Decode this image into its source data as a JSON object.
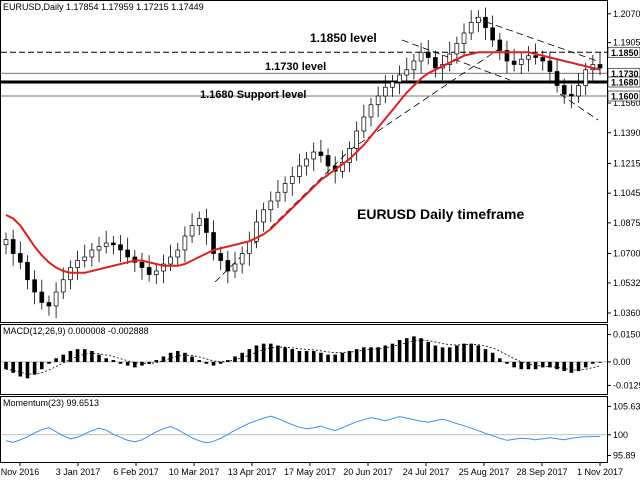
{
  "chart_data": {
    "type": "candlestick",
    "main_title": "EURUSD,Daily  1.17854  1.17959  1.17215  1.17449",
    "annotation_title": "EURUSD Daily timeframe",
    "price_axis": {
      "ticks": [
        "1.2070",
        "1.1905",
        "1.1730",
        "1.1560",
        "1.1390",
        "1.1215",
        "1.1045",
        "1.0875",
        "1.0700",
        "1.0532",
        "1.0360"
      ],
      "range": [
        1.032,
        1.212
      ]
    },
    "levels": [
      {
        "value": 1.185,
        "label": "1.1850 level",
        "tag": "1.1850",
        "style": "dashed"
      },
      {
        "value": 1.173,
        "label": "1.1730 level",
        "tag": "1.1730",
        "style": "thin"
      },
      {
        "value": 1.168,
        "label": "1.1680 Support level",
        "tag": "1.1680",
        "style": "thick"
      },
      {
        "value": 1.16,
        "label": "",
        "tag": "1.1600",
        "style": "thin"
      }
    ],
    "ma_color": "#e0201c",
    "dates": [
      "Nov 2016",
      "3 Jan 2017",
      "6 Feb 2017",
      "10 Mar 2017",
      "13 Apr 2017",
      "17 May 2017",
      "20 Jun 2017",
      "24 Jul 2017",
      "25 Aug 2017",
      "28 Sep 2017",
      "1 Nov 2017"
    ],
    "close_path": [
      1.078,
      1.07,
      1.065,
      1.055,
      1.048,
      1.042,
      1.04,
      1.048,
      1.055,
      1.062,
      1.066,
      1.068,
      1.072,
      1.074,
      1.076,
      1.075,
      1.072,
      1.068,
      1.065,
      1.062,
      1.058,
      1.06,
      1.064,
      1.068,
      1.072,
      1.08,
      1.086,
      1.09,
      1.082,
      1.07,
      1.066,
      1.06,
      1.064,
      1.07,
      1.077,
      1.088,
      1.095,
      1.1,
      1.105,
      1.11,
      1.114,
      1.12,
      1.124,
      1.128,
      1.126,
      1.12,
      1.117,
      1.122,
      1.13,
      1.14,
      1.148,
      1.155,
      1.16,
      1.165,
      1.168,
      1.172,
      1.175,
      1.18,
      1.185,
      1.182,
      1.176,
      1.178,
      1.184,
      1.19,
      1.196,
      1.202,
      1.205,
      1.199,
      1.192,
      1.186,
      1.18,
      1.178,
      1.181,
      1.183,
      1.182,
      1.18,
      1.174,
      1.166,
      1.161,
      1.16,
      1.166,
      1.175,
      1.178,
      1.176
    ],
    "ma_path": [
      1.092,
      1.09,
      1.086,
      1.08,
      1.074,
      1.069,
      1.065,
      1.062,
      1.06,
      1.059,
      1.059,
      1.059,
      1.06,
      1.061,
      1.062,
      1.063,
      1.064,
      1.065,
      1.066,
      1.066,
      1.065,
      1.064,
      1.063,
      1.063,
      1.063,
      1.064,
      1.066,
      1.068,
      1.07,
      1.072,
      1.073,
      1.074,
      1.075,
      1.076,
      1.077,
      1.079,
      1.081,
      1.084,
      1.088,
      1.092,
      1.096,
      1.1,
      1.104,
      1.108,
      1.112,
      1.115,
      1.118,
      1.121,
      1.124,
      1.128,
      1.132,
      1.137,
      1.142,
      1.147,
      1.152,
      1.157,
      1.162,
      1.166,
      1.17,
      1.173,
      1.175,
      1.177,
      1.179,
      1.181,
      1.183,
      1.184,
      1.185,
      1.185,
      1.185,
      1.185,
      1.185,
      1.185,
      1.185,
      1.185,
      1.184,
      1.183,
      1.182,
      1.181,
      1.18,
      1.179,
      1.178,
      1.177,
      1.176,
      1.175
    ],
    "macd": {
      "label": "MACD(12,26,9) 0.000008 -0.002888",
      "ticks": [
        "0.0150",
        "0.00",
        "-0.0129"
      ],
      "range": [
        -0.0165,
        0.0175
      ],
      "hist": [
        -0.004,
        -0.006,
        -0.008,
        -0.009,
        -0.007,
        -0.004,
        -0.001,
        0.002,
        0.004,
        0.006,
        0.007,
        0.007,
        0.006,
        0.004,
        0.002,
        0.001,
        -0.001,
        -0.002,
        -0.003,
        -0.002,
        -0.001,
        0.001,
        0.003,
        0.005,
        0.006,
        0.005,
        0.003,
        0.001,
        -0.001,
        -0.002,
        -0.001,
        0.001,
        0.003,
        0.005,
        0.007,
        0.009,
        0.01,
        0.01,
        0.009,
        0.008,
        0.007,
        0.006,
        0.006,
        0.006,
        0.005,
        0.004,
        0.004,
        0.005,
        0.006,
        0.007,
        0.008,
        0.008,
        0.008,
        0.009,
        0.01,
        0.012,
        0.013,
        0.014,
        0.013,
        0.011,
        0.009,
        0.008,
        0.008,
        0.009,
        0.01,
        0.01,
        0.009,
        0.007,
        0.005,
        0.002,
        -0.001,
        -0.003,
        -0.004,
        -0.004,
        -0.004,
        -0.003,
        -0.003,
        -0.004,
        -0.005,
        -0.006,
        -0.005,
        -0.003,
        -0.001,
        0.0
      ]
    },
    "momentum": {
      "label": "Momentum(23) 99.6513",
      "ticks": [
        "105.63",
        "100",
        "95.89"
      ],
      "range": [
        95.0,
        106.5
      ],
      "values": [
        98.8,
        98.5,
        99.0,
        99.6,
        100.4,
        101.0,
        101.4,
        100.6,
        99.8,
        99.2,
        99.5,
        100.2,
        100.8,
        101.3,
        100.9,
        100.1,
        99.5,
        98.9,
        98.6,
        99.0,
        99.8,
        100.6,
        101.2,
        101.6,
        101.0,
        100.2,
        99.4,
        98.8,
        98.4,
        98.7,
        99.3,
        100.1,
        100.9,
        101.6,
        102.3,
        102.8,
        103.3,
        103.7,
        103.2,
        102.6,
        102.0,
        101.5,
        101.2,
        101.4,
        101.7,
        101.2,
        100.8,
        101.4,
        102.0,
        102.6,
        103.0,
        103.4,
        103.1,
        102.8,
        103.2,
        103.6,
        103.3,
        103.0,
        102.7,
        102.5,
        102.8,
        103.1,
        102.7,
        102.2,
        101.8,
        101.3,
        100.8,
        100.3,
        99.8,
        99.3,
        98.9,
        99.1,
        99.3,
        99.2,
        99.0,
        99.2,
        99.4,
        99.2,
        99.0,
        99.3,
        99.5,
        99.6,
        99.65,
        99.65
      ]
    }
  }
}
